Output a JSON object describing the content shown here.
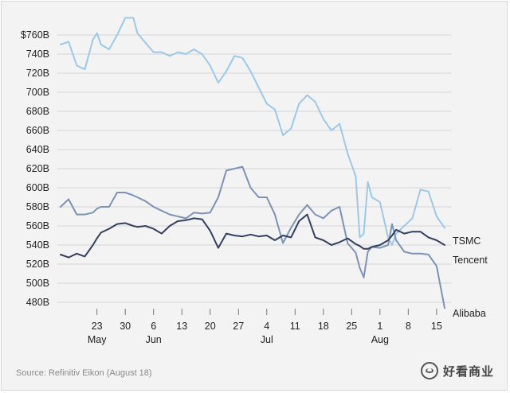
{
  "chart_data": {
    "type": "line",
    "title": "",
    "xlabel": "",
    "ylabel": "",
    "y_ticks": [
      "$760B",
      "740B",
      "720B",
      "700B",
      "680B",
      "660B",
      "640B",
      "620B",
      "600B",
      "580B",
      "560B",
      "540B",
      "520B",
      "500B",
      "480B"
    ],
    "ylim": [
      470,
      770
    ],
    "x_day_ticks": [
      "23",
      "30",
      "6",
      "13",
      "20",
      "27",
      "4",
      "11",
      "18",
      "25",
      "1",
      "8",
      "15"
    ],
    "x_month_labels": [
      {
        "label": "May",
        "date": "May 23"
      },
      {
        "label": "Jun",
        "date": "Jun 6"
      },
      {
        "label": "Jul",
        "date": "Jul 4"
      },
      {
        "label": "Aug",
        "date": "Aug 1"
      }
    ],
    "x": [
      "May 14",
      "May 16",
      "May 18",
      "May 20",
      "May 22",
      "May 23",
      "May 24",
      "May 26",
      "May 28",
      "May 30",
      "Jun 1",
      "Jun 2",
      "Jun 4",
      "Jun 6",
      "Jun 8",
      "Jun 10",
      "Jun 12",
      "Jun 14",
      "Jun 16",
      "Jun 18",
      "Jun 20",
      "Jun 22",
      "Jun 24",
      "Jun 26",
      "Jun 28",
      "Jun 30",
      "Jul 2",
      "Jul 4",
      "Jul 6",
      "Jul 8",
      "Jul 10",
      "Jul 12",
      "Jul 14",
      "Jul 16",
      "Jul 18",
      "Jul 20",
      "Jul 22",
      "Jul 24",
      "Jul 26",
      "Jul 27",
      "Jul 28",
      "Jul 29",
      "Jul 30",
      "Aug 1",
      "Aug 3",
      "Aug 4",
      "Aug 5",
      "Aug 7",
      "Aug 9",
      "Aug 11",
      "Aug 13",
      "Aug 15",
      "Aug 17"
    ],
    "series": [
      {
        "name": "Tencent",
        "color": "#9cc8ea",
        "values": [
          750,
          753,
          728,
          724,
          755,
          762,
          750,
          745,
          760,
          778,
          778,
          762,
          752,
          742,
          742,
          738,
          742,
          740,
          745,
          740,
          728,
          710,
          722,
          738,
          736,
          722,
          705,
          688,
          682,
          655,
          662,
          688,
          697,
          690,
          672,
          660,
          667,
          636,
          612,
          548,
          552,
          606,
          590,
          585,
          548,
          540,
          552,
          560,
          568,
          598,
          596,
          570,
          558
        ]
      },
      {
        "name": "Alibaba",
        "color": "#7d93b5",
        "values": [
          580,
          588,
          572,
          572,
          574,
          578,
          580,
          580,
          595,
          595,
          592,
          590,
          586,
          580,
          576,
          572,
          570,
          568,
          574,
          573,
          574,
          590,
          618,
          620,
          622,
          600,
          590,
          590,
          572,
          542,
          558,
          572,
          582,
          572,
          568,
          576,
          580,
          542,
          532,
          516,
          506,
          533,
          538,
          537,
          540,
          562,
          545,
          533,
          531,
          531,
          530,
          518,
          474
        ]
      },
      {
        "name": "TSMC",
        "color": "#33405e",
        "values": [
          530,
          527,
          531,
          528,
          540,
          547,
          553,
          557,
          562,
          563,
          560,
          559,
          560,
          557,
          552,
          560,
          565,
          566,
          568,
          567,
          555,
          537,
          552,
          550,
          549,
          551,
          549,
          550,
          545,
          550,
          548,
          565,
          572,
          548,
          545,
          540,
          543,
          547,
          541,
          539,
          536,
          536,
          538,
          540,
          545,
          550,
          556,
          552,
          554,
          554,
          548,
          545,
          540
        ]
      }
    ],
    "end_labels": [
      "TSMC",
      "Tencent",
      "Alibaba"
    ],
    "grid": true,
    "legend": "end-of-line labels"
  },
  "source": "Source: Refinitiv Eikon (August 18)",
  "watermark": "好看商业"
}
